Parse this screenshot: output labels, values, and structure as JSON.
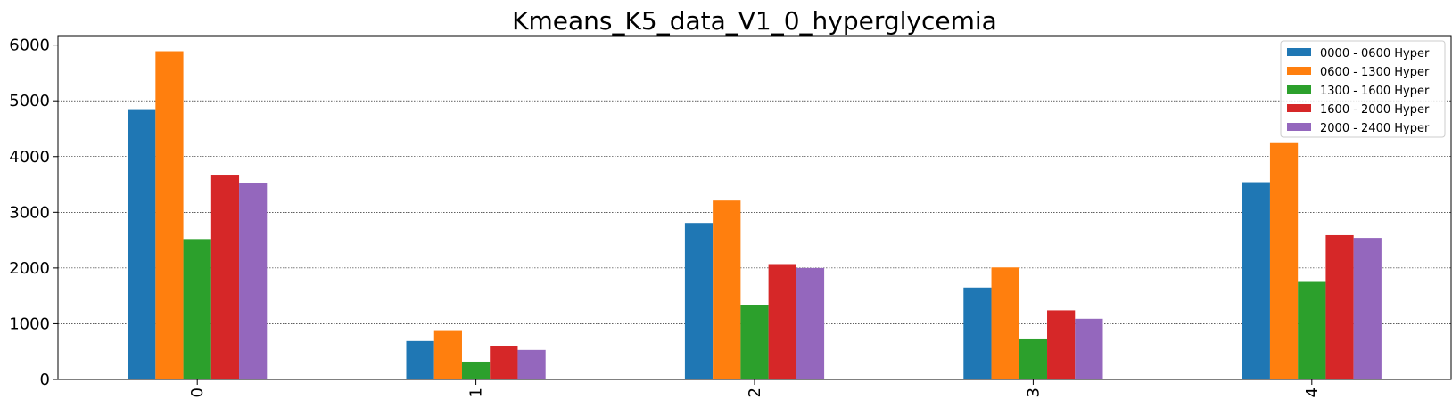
{
  "chart_data": {
    "type": "bar",
    "title": "Kmeans_K5_data_V1_0_hyperglycemia",
    "xlabel": "",
    "ylabel": "",
    "categories": [
      "0",
      "1",
      "2",
      "3",
      "4"
    ],
    "series": [
      {
        "name": "0000 - 0600 Hyper",
        "color": "#1f77b4",
        "values": [
          4850,
          690,
          2810,
          1650,
          3540
        ]
      },
      {
        "name": "0600 - 1300 Hyper",
        "color": "#ff7f0e",
        "values": [
          5890,
          870,
          3210,
          2010,
          4240
        ]
      },
      {
        "name": "1300 - 1600 Hyper",
        "color": "#2ca02c",
        "values": [
          2520,
          320,
          1330,
          720,
          1750
        ]
      },
      {
        "name": "1600 - 2000 Hyper",
        "color": "#d62728",
        "values": [
          3660,
          600,
          2070,
          1240,
          2590
        ]
      },
      {
        "name": "2000 - 2400 Hyper",
        "color": "#9467bd",
        "values": [
          3520,
          530,
          2000,
          1090,
          2540
        ]
      }
    ],
    "ylim": [
      0,
      6170
    ],
    "yticks": [
      0,
      1000,
      2000,
      3000,
      4000,
      5000,
      6000
    ],
    "grid": true,
    "legend_position": "top-right"
  }
}
